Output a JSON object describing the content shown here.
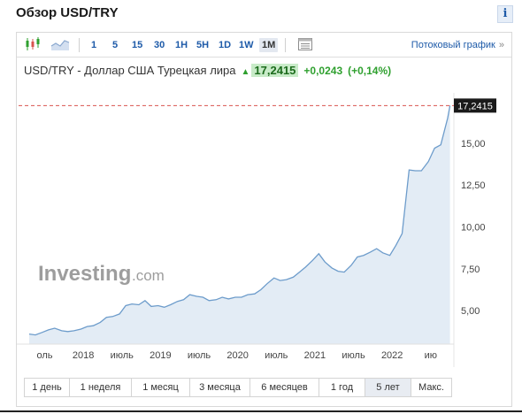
{
  "header": {
    "title": "Обзор USD/TRY",
    "info_label": "i"
  },
  "toolbar": {
    "intervals": [
      "1",
      "5",
      "15",
      "30",
      "1H",
      "5H",
      "1D",
      "1W",
      "1M"
    ],
    "active_interval": "1M",
    "stream_label": "Потоковый график",
    "stream_arrow": "»",
    "icons": [
      "candlestick-icon",
      "area-chart-icon",
      "table-icon"
    ]
  },
  "quote": {
    "name": "USD/TRY - Доллар США Турецкая лира",
    "direction": "up",
    "price": "17,2415",
    "change": "+0,0243",
    "change_pct": "(+0,14%)",
    "up_color": "#2fa02f",
    "price_bg": "#c8ebc8"
  },
  "chart_data": {
    "type": "area",
    "price_label": "17,2415",
    "current_value": 17.2415,
    "y_ticks": [
      "15,00",
      "12,50",
      "10,00",
      "7,50",
      "5,00"
    ],
    "y_tick_values": [
      15,
      12.5,
      10,
      7.5,
      5
    ],
    "ylim": [
      3.0,
      18.0
    ],
    "xlim": [
      2017.3,
      2022.8
    ],
    "x_tick_labels": [
      "оль",
      "2018",
      "июль",
      "2019",
      "июль",
      "2020",
      "июль",
      "2021",
      "июль",
      "2022",
      "ию"
    ],
    "x_tick_values": [
      2017.5,
      2018.0,
      2018.5,
      2019.0,
      2019.5,
      2020.0,
      2020.5,
      2021.0,
      2021.5,
      2022.0,
      2022.5
    ],
    "x": [
      2017.3,
      2017.38,
      2017.47,
      2017.55,
      2017.63,
      2017.72,
      2017.8,
      2017.88,
      2017.97,
      2018.05,
      2018.13,
      2018.22,
      2018.3,
      2018.38,
      2018.47,
      2018.55,
      2018.63,
      2018.72,
      2018.8,
      2018.88,
      2018.97,
      2019.05,
      2019.13,
      2019.22,
      2019.3,
      2019.38,
      2019.47,
      2019.55,
      2019.63,
      2019.72,
      2019.8,
      2019.88,
      2019.97,
      2020.05,
      2020.13,
      2020.22,
      2020.3,
      2020.38,
      2020.47,
      2020.55,
      2020.63,
      2020.72,
      2020.8,
      2020.88,
      2020.97,
      2021.05,
      2021.13,
      2021.22,
      2021.3,
      2021.38,
      2021.47,
      2021.55,
      2021.63,
      2021.72,
      2021.8,
      2021.88,
      2021.97,
      2022.05,
      2022.13,
      2022.22,
      2022.3,
      2022.38,
      2022.47,
      2022.55,
      2022.63,
      2022.72,
      2022.75
    ],
    "values": [
      3.6,
      3.55,
      3.7,
      3.85,
      3.95,
      3.8,
      3.75,
      3.8,
      3.9,
      4.05,
      4.1,
      4.3,
      4.6,
      4.65,
      4.8,
      5.3,
      5.4,
      5.35,
      5.6,
      5.25,
      5.3,
      5.2,
      5.35,
      5.55,
      5.65,
      5.95,
      5.85,
      5.8,
      5.6,
      5.65,
      5.8,
      5.7,
      5.8,
      5.8,
      5.95,
      6.0,
      6.25,
      6.6,
      6.95,
      6.8,
      6.85,
      7.0,
      7.3,
      7.6,
      8.0,
      8.4,
      7.9,
      7.55,
      7.35,
      7.3,
      7.7,
      8.2,
      8.3,
      8.5,
      8.7,
      8.45,
      8.3,
      8.9,
      9.6,
      13.4,
      13.35,
      13.35,
      13.9,
      14.7,
      14.9,
      16.5,
      17.24
    ],
    "line_color": "#6d9ccb",
    "fill_color": "#e3ecf5",
    "dashed_line_color": "#d9534f",
    "watermark": "Investing",
    "watermark_suffix": ".com"
  },
  "ranges": {
    "items": [
      "1 день",
      "1 неделя",
      "1 месяц",
      "3 месяца",
      "6 месяцев",
      "1 год",
      "5 лет",
      "Макс."
    ],
    "active": "5 лет"
  }
}
